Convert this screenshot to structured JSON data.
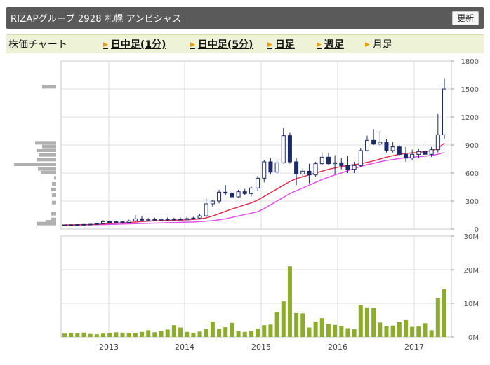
{
  "header": {
    "title": "RIZAPグループ 2928 札幌 アンビシャス",
    "refresh_label": "更新"
  },
  "tabs": {
    "heading": "株価チャート",
    "items": [
      {
        "label": "日中足(1分)",
        "link": true
      },
      {
        "label": "日中足(5分)",
        "link": true
      },
      {
        "label": "日足",
        "link": true
      },
      {
        "label": "週足",
        "link": true
      },
      {
        "label": "月足",
        "link": false
      }
    ]
  },
  "chart_data": [
    {
      "type": "candlestick",
      "title": "",
      "ylim": [
        0,
        1800
      ],
      "yticks": [
        "0",
        "300",
        "600",
        "900",
        "1200",
        "1500",
        "1800"
      ],
      "x_labels": [
        "2013",
        "2014",
        "2015",
        "2016",
        "2017"
      ],
      "grid": true,
      "candles": [
        {
          "o": 42,
          "h": 48,
          "l": 38,
          "c": 45
        },
        {
          "o": 45,
          "h": 50,
          "l": 40,
          "c": 46
        },
        {
          "o": 46,
          "h": 52,
          "l": 42,
          "c": 48
        },
        {
          "o": 48,
          "h": 54,
          "l": 44,
          "c": 50
        },
        {
          "o": 50,
          "h": 56,
          "l": 45,
          "c": 52
        },
        {
          "o": 52,
          "h": 62,
          "l": 48,
          "c": 58
        },
        {
          "o": 58,
          "h": 95,
          "l": 55,
          "c": 80
        },
        {
          "o": 80,
          "h": 92,
          "l": 62,
          "c": 70
        },
        {
          "o": 70,
          "h": 85,
          "l": 60,
          "c": 78
        },
        {
          "o": 78,
          "h": 90,
          "l": 68,
          "c": 72
        },
        {
          "o": 72,
          "h": 100,
          "l": 66,
          "c": 88
        },
        {
          "o": 88,
          "h": 150,
          "l": 80,
          "c": 110
        },
        {
          "o": 110,
          "h": 140,
          "l": 85,
          "c": 95
        },
        {
          "o": 95,
          "h": 118,
          "l": 82,
          "c": 104
        },
        {
          "o": 104,
          "h": 122,
          "l": 88,
          "c": 96
        },
        {
          "o": 96,
          "h": 118,
          "l": 85,
          "c": 105
        },
        {
          "o": 105,
          "h": 125,
          "l": 90,
          "c": 100
        },
        {
          "o": 100,
          "h": 120,
          "l": 88,
          "c": 106
        },
        {
          "o": 106,
          "h": 125,
          "l": 92,
          "c": 100
        },
        {
          "o": 100,
          "h": 130,
          "l": 95,
          "c": 112
        },
        {
          "o": 112,
          "h": 132,
          "l": 100,
          "c": 118
        },
        {
          "o": 118,
          "h": 160,
          "l": 110,
          "c": 142
        },
        {
          "o": 142,
          "h": 330,
          "l": 130,
          "c": 270
        },
        {
          "o": 270,
          "h": 315,
          "l": 240,
          "c": 300
        },
        {
          "o": 300,
          "h": 420,
          "l": 275,
          "c": 395
        },
        {
          "o": 395,
          "h": 470,
          "l": 360,
          "c": 385
        },
        {
          "o": 385,
          "h": 400,
          "l": 330,
          "c": 345
        },
        {
          "o": 345,
          "h": 420,
          "l": 330,
          "c": 400
        },
        {
          "o": 400,
          "h": 430,
          "l": 360,
          "c": 380
        },
        {
          "o": 380,
          "h": 455,
          "l": 350,
          "c": 440
        },
        {
          "o": 440,
          "h": 570,
          "l": 410,
          "c": 545
        },
        {
          "o": 545,
          "h": 740,
          "l": 500,
          "c": 720
        },
        {
          "o": 720,
          "h": 760,
          "l": 590,
          "c": 610
        },
        {
          "o": 610,
          "h": 750,
          "l": 580,
          "c": 710
        },
        {
          "o": 710,
          "h": 1080,
          "l": 700,
          "c": 1000
        },
        {
          "o": 1000,
          "h": 1030,
          "l": 700,
          "c": 720
        },
        {
          "o": 720,
          "h": 760,
          "l": 470,
          "c": 590
        },
        {
          "o": 590,
          "h": 650,
          "l": 560,
          "c": 620
        },
        {
          "o": 620,
          "h": 700,
          "l": 490,
          "c": 580
        },
        {
          "o": 580,
          "h": 720,
          "l": 560,
          "c": 700
        },
        {
          "o": 700,
          "h": 820,
          "l": 690,
          "c": 770
        },
        {
          "o": 770,
          "h": 810,
          "l": 680,
          "c": 700
        },
        {
          "o": 700,
          "h": 790,
          "l": 590,
          "c": 710
        },
        {
          "o": 710,
          "h": 760,
          "l": 640,
          "c": 680
        },
        {
          "o": 680,
          "h": 780,
          "l": 600,
          "c": 640
        },
        {
          "o": 640,
          "h": 720,
          "l": 600,
          "c": 680
        },
        {
          "o": 680,
          "h": 870,
          "l": 660,
          "c": 840
        },
        {
          "o": 840,
          "h": 1000,
          "l": 830,
          "c": 950
        },
        {
          "o": 950,
          "h": 1070,
          "l": 900,
          "c": 910
        },
        {
          "o": 910,
          "h": 1050,
          "l": 880,
          "c": 930
        },
        {
          "o": 930,
          "h": 960,
          "l": 820,
          "c": 840
        },
        {
          "o": 840,
          "h": 930,
          "l": 820,
          "c": 880
        },
        {
          "o": 880,
          "h": 900,
          "l": 780,
          "c": 800
        },
        {
          "o": 800,
          "h": 880,
          "l": 720,
          "c": 760
        },
        {
          "o": 760,
          "h": 850,
          "l": 740,
          "c": 800
        },
        {
          "o": 800,
          "h": 860,
          "l": 760,
          "c": 830
        },
        {
          "o": 830,
          "h": 900,
          "l": 780,
          "c": 800
        },
        {
          "o": 800,
          "h": 880,
          "l": 770,
          "c": 850
        },
        {
          "o": 850,
          "h": 1230,
          "l": 820,
          "c": 1010
        },
        {
          "o": 1010,
          "h": 1610,
          "l": 960,
          "c": 1500
        }
      ],
      "ma_red": [
        45,
        45,
        46,
        47,
        48,
        50,
        55,
        60,
        64,
        67,
        70,
        75,
        80,
        84,
        88,
        90,
        92,
        95,
        97,
        100,
        104,
        108,
        120,
        140,
        165,
        190,
        215,
        235,
        260,
        280,
        310,
        350,
        390,
        430,
        470,
        510,
        540,
        560,
        580,
        600,
        620,
        640,
        655,
        670,
        680,
        690,
        700,
        715,
        730,
        750,
        770,
        785,
        800,
        810,
        815,
        820,
        830,
        840,
        865,
        920
      ],
      "ma_purple": [
        42,
        43,
        44,
        45,
        46,
        47,
        48,
        50,
        52,
        54,
        56,
        58,
        60,
        62,
        64,
        66,
        68,
        70,
        72,
        74,
        76,
        80,
        84,
        90,
        100,
        110,
        125,
        140,
        155,
        170,
        185,
        220,
        260,
        300,
        340,
        380,
        410,
        440,
        470,
        500,
        530,
        555,
        580,
        600,
        625,
        650,
        670,
        690,
        705,
        720,
        735,
        745,
        755,
        765,
        770,
        775,
        780,
        790,
        800,
        820
      ],
      "volume_profile": [
        {
          "price": 55,
          "w": 28
        },
        {
          "price": 75,
          "w": 14
        },
        {
          "price": 100,
          "w": 7
        },
        {
          "price": 160,
          "w": 7
        },
        {
          "price": 280,
          "w": 6
        },
        {
          "price": 360,
          "w": 6
        },
        {
          "price": 420,
          "w": 7
        },
        {
          "price": 480,
          "w": 6
        },
        {
          "price": 545,
          "w": 3
        },
        {
          "price": 600,
          "w": 22
        },
        {
          "price": 640,
          "w": 26
        },
        {
          "price": 690,
          "w": 60
        },
        {
          "price": 740,
          "w": 28
        },
        {
          "price": 790,
          "w": 24
        },
        {
          "price": 840,
          "w": 28
        },
        {
          "price": 880,
          "w": 20
        },
        {
          "price": 920,
          "w": 30
        },
        {
          "price": 1520,
          "w": 20
        }
      ]
    },
    {
      "type": "bar",
      "title": "",
      "ylim": [
        0,
        30
      ],
      "yticks": [
        "0M",
        "10M",
        "20M",
        "30M"
      ],
      "x_labels": [
        "2013",
        "2014",
        "2015",
        "2016",
        "2017"
      ],
      "values": [
        1.0,
        1.2,
        1.1,
        1.3,
        0.9,
        0.8,
        1.0,
        1.2,
        1.4,
        1.3,
        1.1,
        1.2,
        1.5,
        2.0,
        1.4,
        1.8,
        2.2,
        3.5,
        2.8,
        1.5,
        1.2,
        1.6,
        2.4,
        4.6,
        2.5,
        2.9,
        4.2,
        1.8,
        1.5,
        1.7,
        2.5,
        3.5,
        3.7,
        7.3,
        10.6,
        21.0,
        7.1,
        7.0,
        2.8,
        4.6,
        5.6,
        3.9,
        3.6,
        3.3,
        2.6,
        2.3,
        9.5,
        8.8,
        8.7,
        4.3,
        3.2,
        3.4,
        4.4,
        5.0,
        3.0,
        3.1,
        4.1,
        2.0,
        11.6,
        14.2
      ]
    }
  ]
}
